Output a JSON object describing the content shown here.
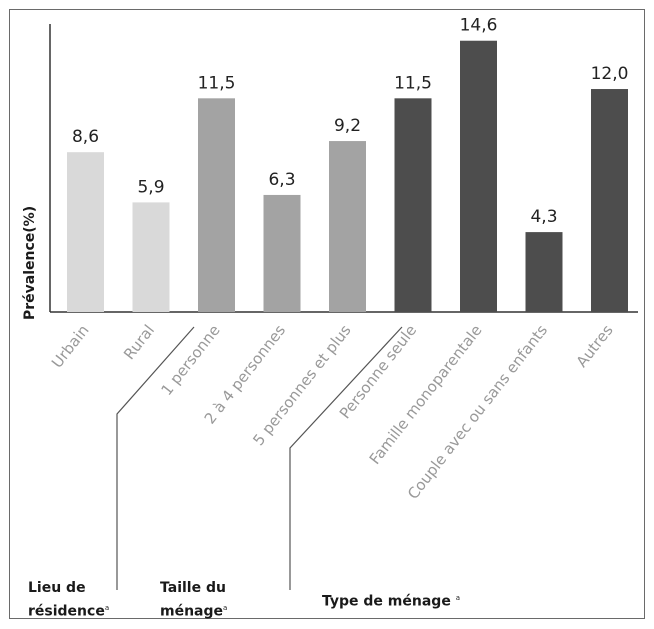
{
  "chart_data": {
    "type": "bar",
    "ylabel": "Prévalence(%)",
    "ylim": [
      0,
      15.5
    ],
    "categories": [
      "Urbain",
      "Rural",
      "1 personne",
      "2 à 4 personnes",
      "5 personnes et plus",
      "Personne seule",
      "Famille monoparentale",
      "Couple avec ou sans enfants",
      "Autres"
    ],
    "values": [
      8.6,
      5.9,
      11.5,
      6.3,
      9.2,
      11.5,
      14.6,
      4.3,
      12.0
    ],
    "value_labels": [
      "8,6",
      "5,9",
      "11,5",
      "6,3",
      "9,2",
      "11,5",
      "14,6",
      "4,3",
      "12,0"
    ],
    "groups": [
      {
        "line1": "Lieu de",
        "line2": "résidence",
        "marker": "a",
        "count": 2,
        "color": "#d9d9d9"
      },
      {
        "line1": "Taille du",
        "line2": "ménage",
        "marker": "a",
        "count": 3,
        "color": "#a3a3a3"
      },
      {
        "line1": "Type de ménage",
        "line2": "",
        "marker": "a",
        "count": 4,
        "color": "#4d4d4d"
      }
    ],
    "grid": false,
    "legend": "none"
  }
}
